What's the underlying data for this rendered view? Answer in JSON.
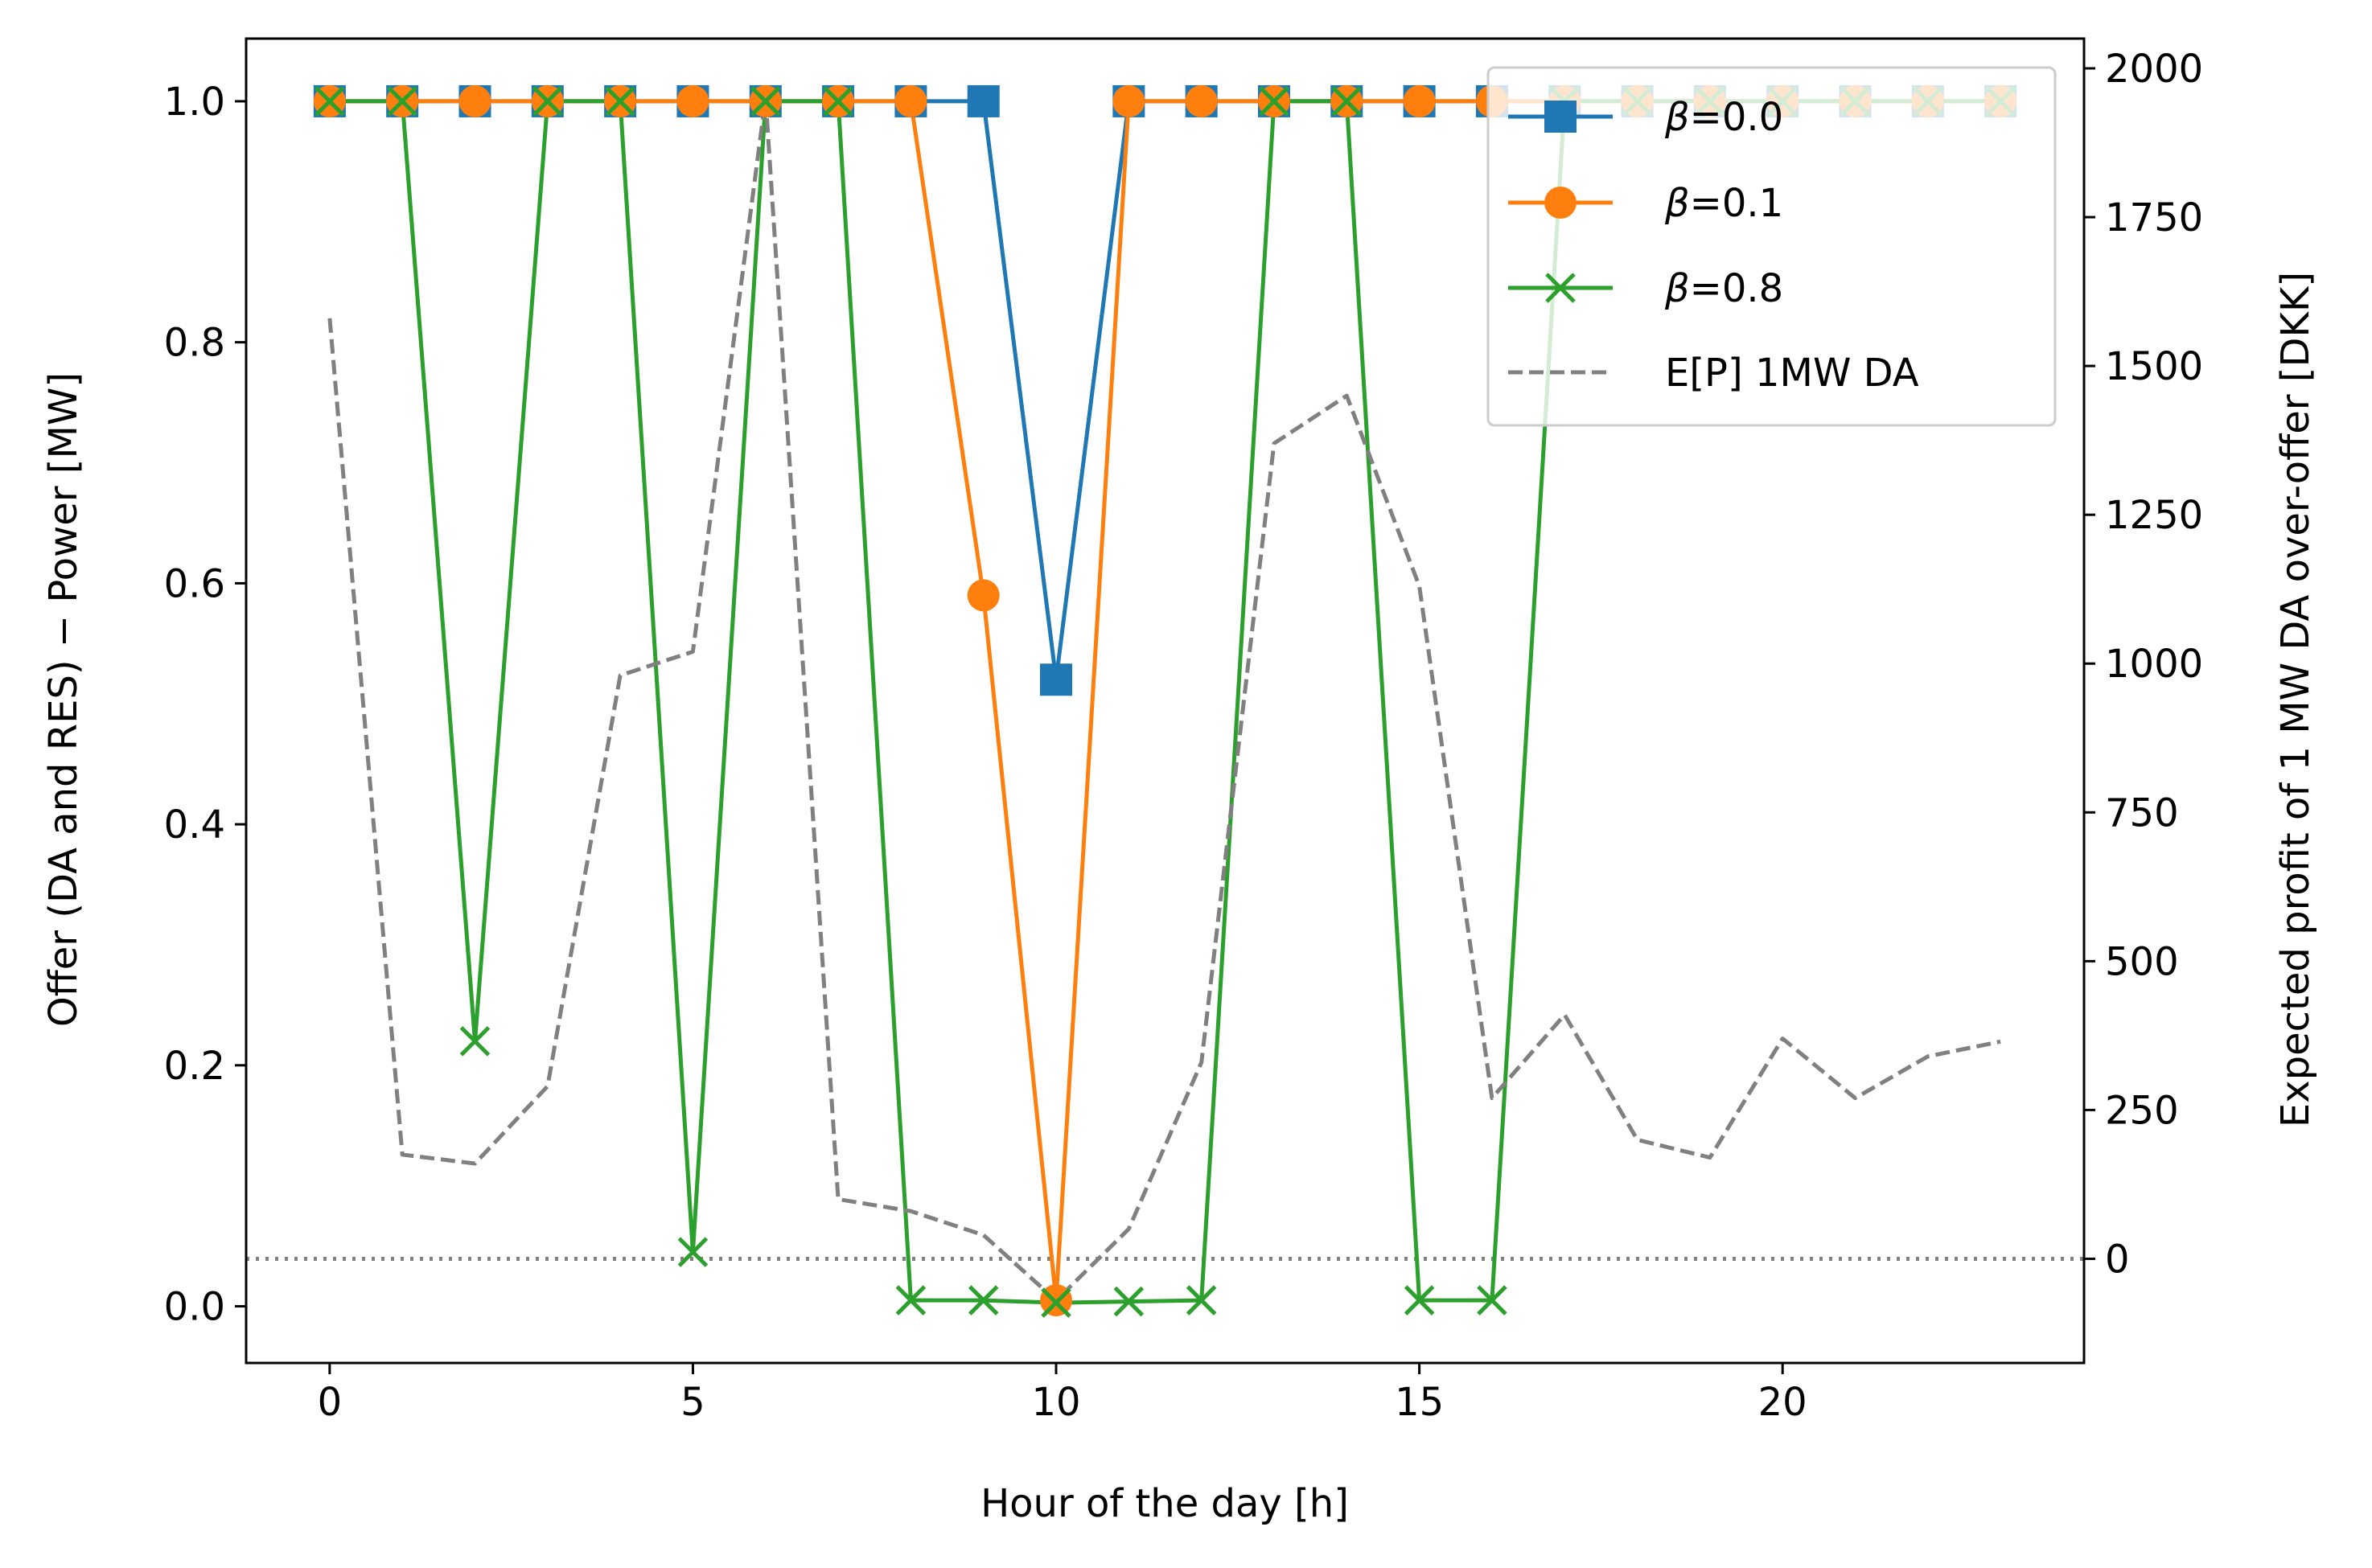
{
  "chart_data": {
    "type": "line",
    "xlabel": "Hour of the day [h]",
    "ylabel": "Offer (DA and RES) − Power [MW]",
    "ylabel_right": "Expected profit of 1 MW DA over-offer [DKK]",
    "xlim": [
      -1.15,
      24.15
    ],
    "ylim": [
      -0.047,
      1.052
    ],
    "ylim_right": [
      -175,
      2050
    ],
    "xticks": [
      0,
      5,
      10,
      15,
      20
    ],
    "xtick_labels": [
      "0",
      "5",
      "10",
      "15",
      "20"
    ],
    "yticks": [
      0.0,
      0.2,
      0.4,
      0.6,
      0.8,
      1.0
    ],
    "ytick_labels": [
      "0.0",
      "0.2",
      "0.4",
      "0.6",
      "0.8",
      "1.0"
    ],
    "yticks_right": [
      0,
      250,
      500,
      750,
      1000,
      1250,
      1500,
      1750,
      2000
    ],
    "ytick_labels_right": [
      "0",
      "250",
      "500",
      "750",
      "1000",
      "1250",
      "1500",
      "1750",
      "2000"
    ],
    "zero_reference_line": 0,
    "legend_position": "upper right",
    "x": [
      0,
      1,
      2,
      3,
      4,
      5,
      6,
      7,
      8,
      9,
      10,
      11,
      12,
      13,
      14,
      15,
      16,
      17,
      18,
      19,
      20,
      21,
      22,
      23
    ],
    "series": [
      {
        "name": "β=0.0",
        "name_symbol": "β",
        "name_rest": "=0.0",
        "axis": "left",
        "color": "#1f77b4",
        "marker": "square",
        "linestyle": "solid",
        "values": [
          1,
          1,
          1,
          1,
          1,
          1,
          1,
          1,
          1,
          1,
          0.52,
          1,
          1,
          1,
          1,
          1,
          1,
          1,
          1,
          1,
          1,
          1,
          1,
          1
        ]
      },
      {
        "name": "β=0.1",
        "name_symbol": "β",
        "name_rest": "=0.1",
        "axis": "left",
        "color": "#ff7f0e",
        "marker": "circle",
        "linestyle": "solid",
        "values": [
          1,
          1,
          1,
          1,
          1,
          1,
          1,
          1,
          1,
          0.59,
          0.005,
          1,
          1,
          1,
          1,
          1,
          1,
          1,
          1,
          1,
          1,
          1,
          1,
          1
        ]
      },
      {
        "name": "β=0.8",
        "name_symbol": "β",
        "name_rest": "=0.8",
        "axis": "left",
        "color": "#2ca02c",
        "marker": "x",
        "linestyle": "solid",
        "values": [
          1,
          1,
          0.22,
          1,
          1,
          0.045,
          1,
          1,
          0.005,
          0.005,
          0.003,
          0.004,
          0.005,
          1,
          1,
          0.005,
          0.005,
          1,
          1,
          1,
          1,
          1,
          1,
          1
        ]
      },
      {
        "name": "E[P] 1MW DA",
        "name_symbol": "",
        "name_rest": "E[P] 1MW DA",
        "axis": "right",
        "color": "#808080",
        "marker": "none",
        "linestyle": "dashed",
        "values": [
          1580,
          175,
          160,
          290,
          980,
          1020,
          1950,
          100,
          80,
          40,
          -70,
          50,
          330,
          1370,
          1450,
          1130,
          270,
          410,
          200,
          170,
          370,
          270,
          340,
          365
        ]
      }
    ]
  }
}
